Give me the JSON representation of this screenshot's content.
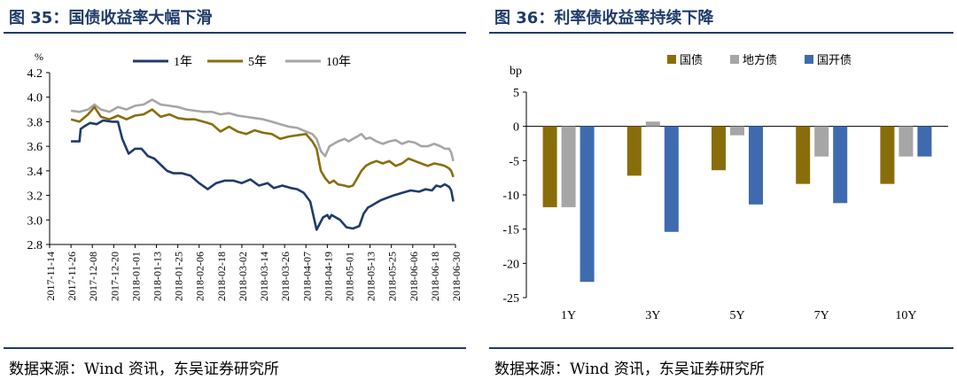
{
  "charts": {
    "left_title": "图 35：国债收益率大幅下滑",
    "right_title": "图 36：利率债收益率持续下降",
    "left_source": "数据来源：Wind 资讯，东吴证券研究所",
    "right_source": "数据来源：Wind 资讯，东吴证券研究所"
  },
  "colors": {
    "title": "#1f3b6b",
    "y1": "#1f3b6b",
    "y5": "#8a6d0b",
    "y10": "#a6a6a6",
    "guozhai": "#8a6d0b",
    "difang": "#a6a6a6",
    "guokai": "#3e6baf"
  },
  "chart_data": [
    {
      "type": "line",
      "title": "国债收益率大幅下滑",
      "ylabel": "%",
      "ylim": [
        2.8,
        4.2
      ],
      "yticks": [
        "4.2",
        "4.0",
        "3.8",
        "3.6",
        "3.4",
        "3.2",
        "3.0",
        "2.8"
      ],
      "categories": [
        "2017-11-14",
        "2017-11-26",
        "2017-12-08",
        "2017-12-20",
        "2018-01-01",
        "2018-01-13",
        "2018-01-25",
        "2018-02-06",
        "2018-02-18",
        "2018-03-02",
        "2018-03-14",
        "2018-03-26",
        "2018-04-07",
        "2018-04-19",
        "2018-05-01",
        "2018-05-13",
        "2018-05-25",
        "2018-06-06",
        "2018-06-18",
        "2018-06-30"
      ],
      "series": [
        {
          "name": "1年",
          "x": [
            1.0,
            1.4,
            1.45,
            1.6,
            1.9,
            2.2,
            2.5,
            2.9,
            3.2,
            3.4,
            3.7,
            4.0,
            4.3,
            4.6,
            4.9,
            5.2,
            5.5,
            5.8,
            6.2,
            6.6,
            7.0,
            7.4,
            7.8,
            8.2,
            8.6,
            9.0,
            9.4,
            9.8,
            10.2,
            10.5,
            10.9,
            11.3,
            11.6,
            11.9,
            12.2,
            12.5,
            12.8,
            13.0,
            13.1,
            13.2,
            13.4,
            13.6,
            13.9,
            14.2,
            14.5,
            14.7,
            14.9,
            15.1,
            15.3,
            15.5,
            15.8,
            16.1,
            16.5,
            16.9,
            17.3,
            17.6,
            17.9,
            18.1,
            18.3,
            18.5,
            18.7,
            18.8,
            18.9
          ],
          "y": [
            3.64,
            3.64,
            3.74,
            3.76,
            3.79,
            3.78,
            3.81,
            3.8,
            3.8,
            3.66,
            3.54,
            3.58,
            3.58,
            3.52,
            3.5,
            3.45,
            3.4,
            3.38,
            3.38,
            3.36,
            3.3,
            3.25,
            3.3,
            3.32,
            3.32,
            3.3,
            3.33,
            3.28,
            3.3,
            3.26,
            3.28,
            3.26,
            3.25,
            3.22,
            3.15,
            2.92,
            3.02,
            3.04,
            3.01,
            3.04,
            3.02,
            3.0,
            2.94,
            2.93,
            2.95,
            3.05,
            3.1,
            3.12,
            3.14,
            3.16,
            3.18,
            3.2,
            3.22,
            3.24,
            3.23,
            3.25,
            3.24,
            3.28,
            3.27,
            3.29,
            3.27,
            3.24,
            3.15
          ]
        },
        {
          "name": "5年",
          "x": [
            1.0,
            1.4,
            1.8,
            2.1,
            2.4,
            2.8,
            3.2,
            3.6,
            4.0,
            4.4,
            4.8,
            5.2,
            5.6,
            6.0,
            6.4,
            6.8,
            7.2,
            7.6,
            8.0,
            8.4,
            8.8,
            9.2,
            9.6,
            10.0,
            10.4,
            10.8,
            11.2,
            11.6,
            12.0,
            12.3,
            12.5,
            12.7,
            12.9,
            13.1,
            13.3,
            13.5,
            13.8,
            14.0,
            14.2,
            14.4,
            14.6,
            14.8,
            15.0,
            15.3,
            15.6,
            15.9,
            16.2,
            16.5,
            16.8,
            17.1,
            17.4,
            17.7,
            18.0,
            18.3,
            18.5,
            18.7,
            18.8,
            18.9
          ],
          "y": [
            3.82,
            3.8,
            3.86,
            3.92,
            3.84,
            3.82,
            3.85,
            3.82,
            3.85,
            3.86,
            3.9,
            3.84,
            3.86,
            3.83,
            3.82,
            3.82,
            3.8,
            3.78,
            3.72,
            3.76,
            3.72,
            3.7,
            3.73,
            3.71,
            3.7,
            3.66,
            3.68,
            3.69,
            3.7,
            3.64,
            3.58,
            3.4,
            3.34,
            3.3,
            3.32,
            3.29,
            3.28,
            3.27,
            3.28,
            3.34,
            3.4,
            3.44,
            3.46,
            3.48,
            3.46,
            3.48,
            3.44,
            3.46,
            3.5,
            3.48,
            3.46,
            3.44,
            3.46,
            3.45,
            3.44,
            3.42,
            3.4,
            3.35
          ]
        },
        {
          "name": "10年",
          "x": [
            1.0,
            1.4,
            1.8,
            2.1,
            2.4,
            2.8,
            3.2,
            3.6,
            4.0,
            4.4,
            4.8,
            5.2,
            5.6,
            6.0,
            6.4,
            6.8,
            7.2,
            7.6,
            8.0,
            8.4,
            8.8,
            9.2,
            9.6,
            10.0,
            10.4,
            10.8,
            11.2,
            11.6,
            12.0,
            12.3,
            12.5,
            12.7,
            12.9,
            13.1,
            13.3,
            13.5,
            13.8,
            14.0,
            14.2,
            14.4,
            14.6,
            14.8,
            15.0,
            15.3,
            15.6,
            15.9,
            16.2,
            16.5,
            16.8,
            17.1,
            17.4,
            17.7,
            18.0,
            18.3,
            18.5,
            18.7,
            18.8,
            18.9
          ],
          "y": [
            3.89,
            3.88,
            3.9,
            3.94,
            3.9,
            3.88,
            3.92,
            3.9,
            3.93,
            3.94,
            3.98,
            3.94,
            3.93,
            3.92,
            3.9,
            3.89,
            3.88,
            3.88,
            3.86,
            3.87,
            3.85,
            3.84,
            3.83,
            3.82,
            3.8,
            3.78,
            3.76,
            3.75,
            3.72,
            3.7,
            3.66,
            3.56,
            3.52,
            3.6,
            3.62,
            3.64,
            3.66,
            3.64,
            3.66,
            3.68,
            3.7,
            3.66,
            3.67,
            3.64,
            3.62,
            3.64,
            3.65,
            3.62,
            3.64,
            3.63,
            3.6,
            3.6,
            3.62,
            3.6,
            3.58,
            3.58,
            3.55,
            3.48
          ]
        }
      ]
    },
    {
      "type": "bar",
      "title": "利率债收益率持续下降",
      "ylabel": "bp",
      "ylim": [
        -25,
        5
      ],
      "yticks": [
        "5",
        "0",
        "-5",
        "-10",
        "-15",
        "-20",
        "-25"
      ],
      "categories": [
        "1Y",
        "3Y",
        "5Y",
        "7Y",
        "10Y"
      ],
      "series": [
        {
          "name": "国债",
          "values": [
            -11.8,
            -7.2,
            -6.4,
            -8.4,
            -8.4
          ]
        },
        {
          "name": "地方债",
          "values": [
            -11.8,
            0.7,
            -1.3,
            -4.4,
            -4.4
          ]
        },
        {
          "name": "国开债",
          "values": [
            -22.7,
            -15.4,
            -11.4,
            -11.2,
            -4.4
          ]
        }
      ]
    }
  ]
}
